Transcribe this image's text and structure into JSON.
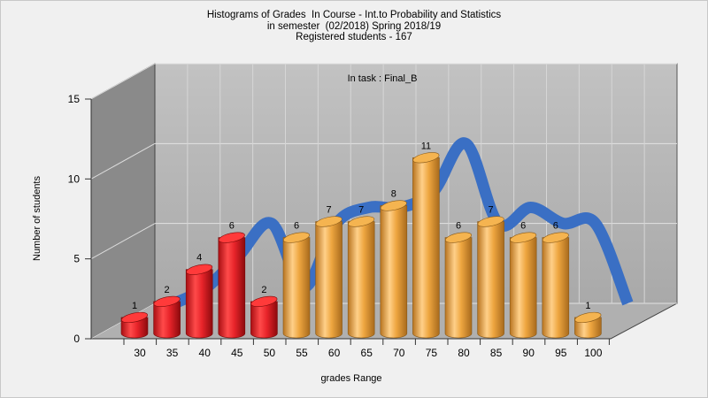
{
  "chart_data": {
    "type": "bar",
    "title_lines": [
      "Histograms of Grades  In Course - Int.to Probability and Statistics",
      "in semester  (02/2018) Spring 2018/19",
      "Registered students - 167"
    ],
    "annotation": "In task : Final_B",
    "xlabel": "grades Range",
    "ylabel": "Number of students",
    "categories": [
      "30",
      "35",
      "40",
      "45",
      "50",
      "55",
      "60",
      "65",
      "70",
      "75",
      "80",
      "85",
      "90",
      "95",
      "100"
    ],
    "values": [
      1,
      2,
      4,
      6,
      2,
      6,
      7,
      7,
      8,
      11,
      6,
      7,
      6,
      6,
      1
    ],
    "bar_colors": [
      "red",
      "red",
      "red",
      "red",
      "red",
      "orange",
      "orange",
      "orange",
      "orange",
      "orange",
      "orange",
      "orange",
      "orange",
      "orange",
      "orange"
    ],
    "yticks": [
      "0",
      "5",
      "10",
      "15"
    ],
    "ylim": [
      0,
      15
    ],
    "grid": true,
    "trend_line": true,
    "colors": {
      "red": "#e8242a",
      "orange": "#eea640",
      "trend": "#3a6fc4",
      "back_wall": "#b5b5b5",
      "side_wall": "#8a8a8a",
      "floor": "#b0b0b0"
    }
  }
}
